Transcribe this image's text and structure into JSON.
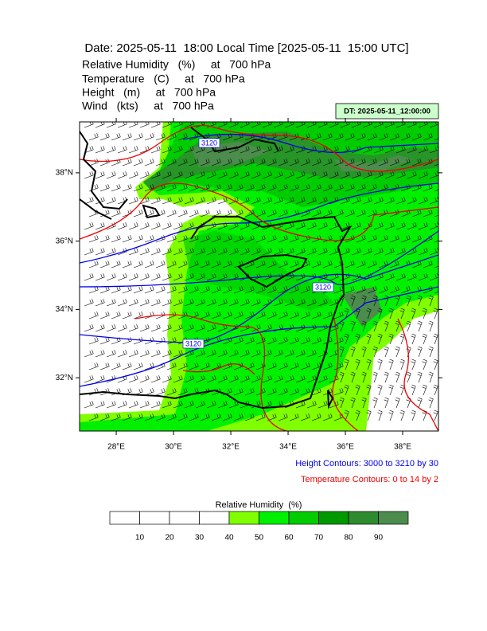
{
  "header": {
    "title": "Date: 2025-05-11  18:00 Local Time [2025-05-11  15:00 UTC]",
    "fields": [
      "Relative Humidity   (%)     at   700 hPa",
      "Temperature   (C)     at   700 hPa",
      "Height   (m)     at   700 hPa",
      "Wind   (kts)     at   700 hPa"
    ],
    "dt_label": "DT: 2025-05-11_12:00:00"
  },
  "map": {
    "xlim": [
      26.72,
      39.25
    ],
    "ylim": [
      30.44,
      39.49
    ],
    "lon_ticks": [
      {
        "value": 28,
        "label": "28°E"
      },
      {
        "value": 30,
        "label": "30°E"
      },
      {
        "value": 32,
        "label": "32°E"
      },
      {
        "value": 34,
        "label": "34°E"
      },
      {
        "value": 36,
        "label": "36°E"
      },
      {
        "value": 38,
        "label": "38°E"
      }
    ],
    "lat_ticks": [
      {
        "value": 38,
        "label": "38°N"
      },
      {
        "value": 36,
        "label": "36°N"
      },
      {
        "value": 34,
        "label": "34°N"
      },
      {
        "value": 32,
        "label": "32°N"
      }
    ],
    "contour_labels": [
      "3120",
      "3120",
      "3120"
    ],
    "height_note": "Height Contours: 3000 to 3210 by 30",
    "temperature_note": "Temperature Contours: 0 to 14 by 2"
  },
  "colorbar": {
    "title": "Relative Humidity  (%)",
    "range": [
      0,
      100
    ],
    "ticks": [
      10,
      20,
      30,
      40,
      50,
      60,
      70,
      80,
      90
    ],
    "colors": [
      "#ffffff",
      "#ffffff",
      "#ffffff",
      "#ffffff",
      "#80ff00",
      "#00f000",
      "#00cc00",
      "#009900",
      "#2e8b2e",
      "#4c8c4c"
    ]
  }
}
